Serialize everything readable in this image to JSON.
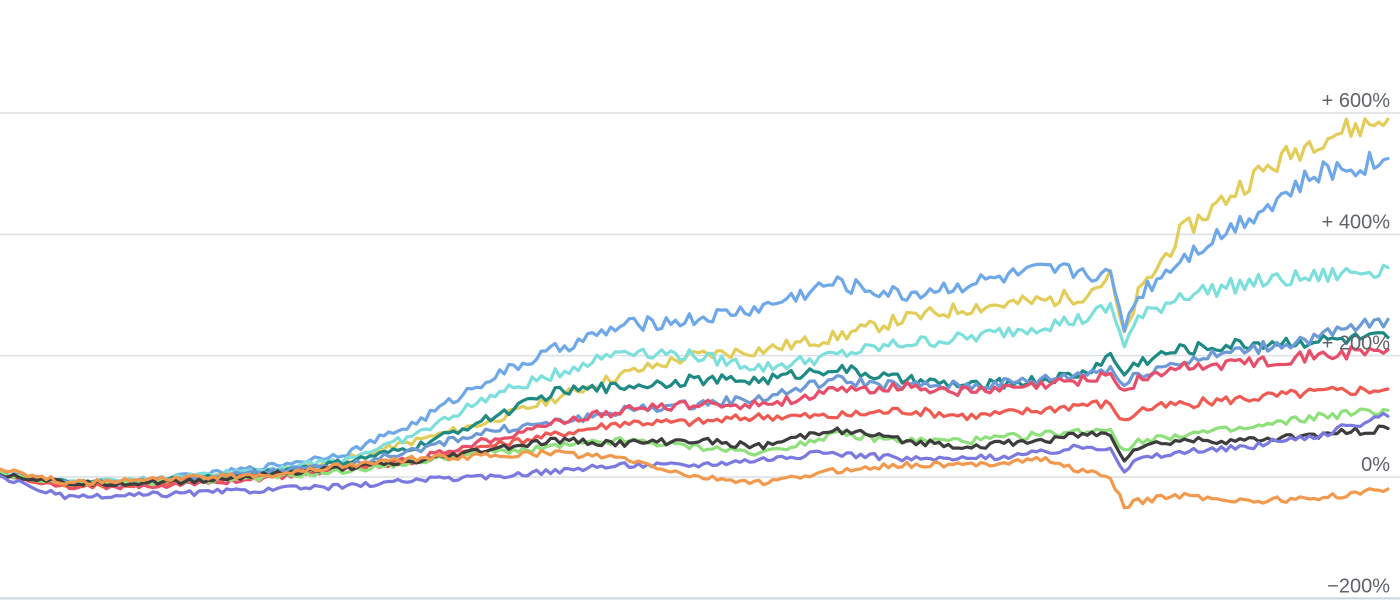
{
  "chart_data": {
    "type": "line",
    "title": "",
    "xlabel": "",
    "ylabel": "",
    "y_unit": "%",
    "ylim": [
      -200,
      800
    ],
    "grid": true,
    "legend": "none",
    "y_ticks": [
      {
        "value": 600,
        "label": "+ 600%"
      },
      {
        "value": 400,
        "label": "+ 400%"
      },
      {
        "value": 200,
        "label": "+ 200%"
      },
      {
        "value": 0,
        "label": "0%"
      },
      {
        "value": -200,
        "label": "−200%"
      }
    ],
    "x": [
      0,
      5,
      10,
      15,
      20,
      25,
      30,
      35,
      40,
      45,
      50,
      55,
      60,
      65,
      70,
      75,
      78,
      80,
      81,
      82,
      85,
      90,
      95,
      100
    ],
    "series": [
      {
        "color": "#e3cd5a",
        "values": [
          5,
          -15,
          -10,
          0,
          10,
          30,
          60,
          90,
          130,
          170,
          200,
          210,
          230,
          260,
          280,
          290,
          300,
          330,
          230,
          300,
          400,
          490,
          560,
          590
        ]
      },
      {
        "color": "#6ea8e8",
        "values": [
          5,
          -10,
          -5,
          5,
          20,
          40,
          90,
          160,
          210,
          250,
          260,
          280,
          320,
          300,
          320,
          340,
          340,
          330,
          250,
          300,
          360,
          430,
          500,
          525
        ]
      },
      {
        "color": "#7ddfdc",
        "values": [
          5,
          -10,
          -5,
          5,
          15,
          30,
          70,
          130,
          170,
          210,
          200,
          180,
          200,
          220,
          230,
          250,
          260,
          280,
          220,
          260,
          300,
          320,
          330,
          345
        ]
      },
      {
        "color": "#1e8a85",
        "values": [
          5,
          -10,
          -8,
          0,
          10,
          25,
          50,
          95,
          140,
          150,
          160,
          160,
          180,
          160,
          150,
          160,
          170,
          200,
          170,
          190,
          210,
          220,
          225,
          230
        ]
      },
      {
        "color": "#6c9ad6",
        "values": [
          5,
          -10,
          -10,
          0,
          10,
          20,
          45,
          75,
          90,
          110,
          120,
          130,
          160,
          150,
          150,
          160,
          170,
          180,
          150,
          170,
          190,
          210,
          230,
          260
        ]
      },
      {
        "color": "#e84d6a",
        "values": [
          5,
          -15,
          -15,
          -10,
          0,
          15,
          30,
          60,
          90,
          110,
          120,
          120,
          140,
          150,
          140,
          150,
          160,
          170,
          140,
          160,
          180,
          190,
          200,
          210
        ]
      },
      {
        "color": "#ef5b52",
        "values": [
          5,
          -15,
          -12,
          -5,
          5,
          15,
          25,
          50,
          70,
          90,
          90,
          100,
          100,
          110,
          100,
          110,
          120,
          120,
          90,
          110,
          120,
          130,
          140,
          145
        ]
      },
      {
        "color": "#8ee07a",
        "values": [
          5,
          -10,
          -10,
          -5,
          0,
          10,
          25,
          40,
          50,
          60,
          50,
          40,
          70,
          60,
          60,
          70,
          75,
          80,
          40,
          60,
          70,
          80,
          100,
          110
        ]
      },
      {
        "color": "#3d3d3d",
        "values": [
          5,
          -10,
          -10,
          -5,
          5,
          15,
          25,
          45,
          60,
          55,
          60,
          50,
          80,
          60,
          50,
          60,
          70,
          70,
          30,
          50,
          60,
          60,
          70,
          80
        ]
      },
      {
        "color": "#7b79e0",
        "values": [
          0,
          -35,
          -30,
          -25,
          -20,
          -15,
          -5,
          0,
          10,
          20,
          20,
          30,
          40,
          30,
          30,
          40,
          50,
          50,
          10,
          30,
          40,
          50,
          70,
          100
        ]
      },
      {
        "color": "#f2994e",
        "values": [
          15,
          -10,
          -5,
          0,
          5,
          20,
          30,
          35,
          40,
          30,
          0,
          -10,
          10,
          20,
          20,
          30,
          10,
          0,
          -50,
          -40,
          -30,
          -40,
          -35,
          -20
        ]
      }
    ]
  }
}
